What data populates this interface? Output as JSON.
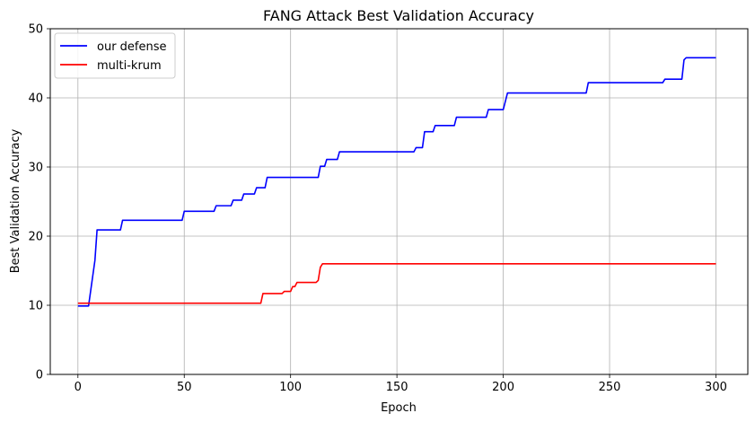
{
  "chart_data": {
    "type": "line",
    "title": "FANG Attack Best Validation Accuracy",
    "xlabel": "Epoch",
    "ylabel": "Best Validation Accuracy",
    "xlim": [
      -13,
      315
    ],
    "ylim": [
      0,
      50
    ],
    "x_ticks": [
      0,
      50,
      100,
      150,
      200,
      250,
      300
    ],
    "y_ticks": [
      0,
      10,
      20,
      30,
      40,
      50
    ],
    "grid": true,
    "legend_position": "top-left",
    "series": [
      {
        "name": "our defense",
        "color": "#0000ff",
        "points": [
          [
            0,
            9.9
          ],
          [
            5,
            9.9
          ],
          [
            8,
            16.5
          ],
          [
            9,
            20.9
          ],
          [
            20,
            20.9
          ],
          [
            21,
            22.3
          ],
          [
            49,
            22.3
          ],
          [
            50,
            23.6
          ],
          [
            64,
            23.6
          ],
          [
            65,
            24.4
          ],
          [
            72,
            24.4
          ],
          [
            73,
            25.2
          ],
          [
            77,
            25.2
          ],
          [
            78,
            26.1
          ],
          [
            83,
            26.1
          ],
          [
            84,
            27.0
          ],
          [
            88,
            27.0
          ],
          [
            89,
            28.5
          ],
          [
            113,
            28.5
          ],
          [
            114,
            30.1
          ],
          [
            116,
            30.1
          ],
          [
            117,
            31.1
          ],
          [
            122,
            31.1
          ],
          [
            123,
            32.2
          ],
          [
            158,
            32.2
          ],
          [
            159,
            32.8
          ],
          [
            162,
            32.8
          ],
          [
            163,
            35.1
          ],
          [
            167,
            35.1
          ],
          [
            168,
            36.0
          ],
          [
            177,
            36.0
          ],
          [
            178,
            37.2
          ],
          [
            192,
            37.2
          ],
          [
            193,
            38.3
          ],
          [
            200,
            38.3
          ],
          [
            202,
            40.7
          ],
          [
            239,
            40.7
          ],
          [
            240,
            42.2
          ],
          [
            275,
            42.2
          ],
          [
            276,
            42.7
          ],
          [
            284,
            42.7
          ],
          [
            285,
            45.5
          ],
          [
            286,
            45.8
          ],
          [
            300,
            45.8
          ]
        ]
      },
      {
        "name": "multi-krum",
        "color": "#ff0000",
        "points": [
          [
            0,
            10.3
          ],
          [
            86,
            10.3
          ],
          [
            87,
            11.7
          ],
          [
            96,
            11.7
          ],
          [
            97,
            12.0
          ],
          [
            100,
            12.0
          ],
          [
            101,
            12.7
          ],
          [
            102,
            12.7
          ],
          [
            103,
            13.3
          ],
          [
            112,
            13.3
          ],
          [
            113,
            13.6
          ],
          [
            114,
            15.5
          ],
          [
            115,
            16.0
          ],
          [
            300,
            16.0
          ]
        ]
      }
    ]
  }
}
